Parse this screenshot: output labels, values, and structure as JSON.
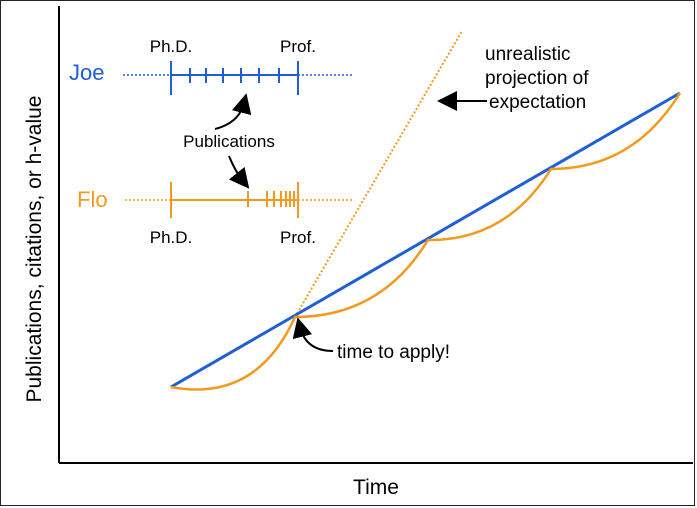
{
  "axes": {
    "xlabel": "Time",
    "ylabel": "Publications, citations, or h-value"
  },
  "joe": {
    "name": "Joe",
    "phd_label": "Ph.D.",
    "prof_label": "Prof."
  },
  "flo": {
    "name": "Flo",
    "phd_label": "Ph.D.",
    "prof_label": "Prof."
  },
  "annotations": {
    "publications": "Publications",
    "projection_line1": "unrealistic",
    "projection_line2": "projection of",
    "projection_line3": "expectation",
    "apply": "time to apply!"
  },
  "colors": {
    "blue": "#1f5fd6",
    "orange": "#f39a1e",
    "black": "#000000"
  }
}
